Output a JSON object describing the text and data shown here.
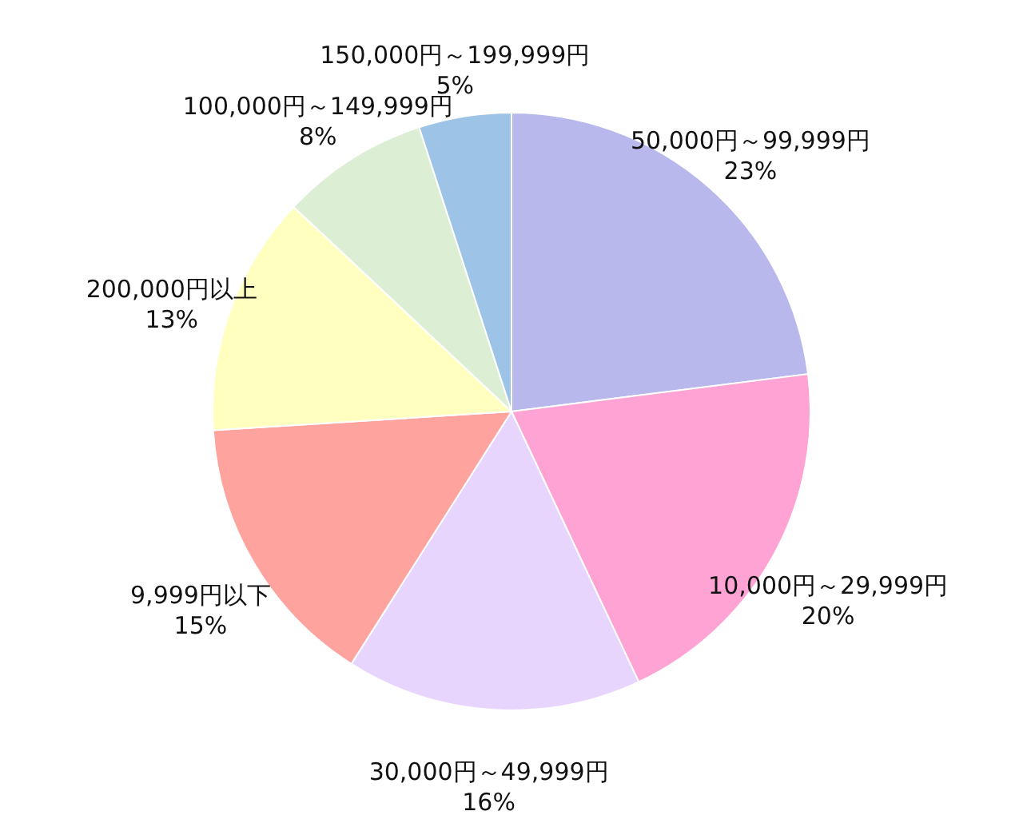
{
  "chart_data": {
    "type": "pie",
    "categories": [
      "50,000円～99,999円",
      "10,000円～29,999円",
      "30,000円～49,999円",
      "9,999円以下",
      "200,000円以上",
      "100,000円～149,999円",
      "150,000円～199,999円"
    ],
    "values": [
      23,
      20,
      16,
      15,
      13,
      8,
      5
    ],
    "value_labels": [
      "23%",
      "20%",
      "16%",
      "15%",
      "13%",
      "8%",
      "5%"
    ],
    "colors": [
      "#b8b8ec",
      "#ffa3d4",
      "#e8d5fd",
      "#ffa39e",
      "#ffffc0",
      "#dcefd5",
      "#9dc3e6"
    ]
  }
}
